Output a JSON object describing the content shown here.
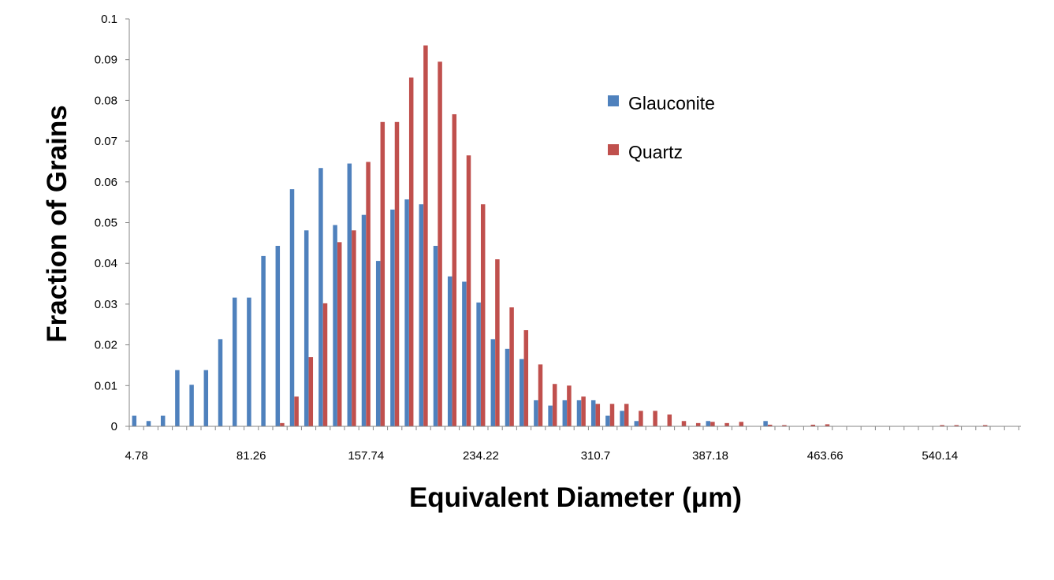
{
  "chart_data": {
    "type": "bar",
    "xlabel": "Equivalent Diameter (μm)",
    "ylabel": "Fraction of Grains",
    "ylim": [
      0,
      0.1
    ],
    "yticks": [
      "0",
      "0.01",
      "0.02",
      "0.03",
      "0.04",
      "0.05",
      "0.06",
      "0.07",
      "0.08",
      "0.09",
      "0.1"
    ],
    "xtick_labels": [
      "4.78",
      "81.26",
      "157.74",
      "234.22",
      "310.7",
      "387.18",
      "463.66",
      "540.14"
    ],
    "bin_width": 9.56,
    "x": [
      4.78,
      14.34,
      23.9,
      33.46,
      43.02,
      52.58,
      62.14,
      71.7,
      81.26,
      90.82,
      100.38,
      109.94,
      119.5,
      129.06,
      138.62,
      148.18,
      157.74,
      167.3,
      176.86,
      186.42,
      195.98,
      205.54,
      215.1,
      224.66,
      234.22,
      243.78,
      253.34,
      262.9,
      272.46,
      282.02,
      291.58,
      301.14,
      310.7,
      320.26,
      329.82,
      339.38,
      348.94,
      358.5,
      368.06,
      377.62,
      387.18,
      396.74,
      406.3,
      415.86,
      425.42,
      434.98,
      444.54,
      454.1,
      463.66,
      473.22,
      482.78,
      492.34,
      501.9,
      511.46,
      521.02,
      530.58,
      540.14,
      549.7,
      559.26,
      568.82,
      578.38,
      587.94
    ],
    "legend_position": "top-right",
    "series": [
      {
        "name": "Glauconite",
        "color": "#4F81BD",
        "values": [
          0.0026,
          0.0013,
          0.0026,
          0.0138,
          0.0102,
          0.0138,
          0.0214,
          0.0316,
          0.0316,
          0.0418,
          0.0443,
          0.0582,
          0.0481,
          0.0634,
          0.0494,
          0.0645,
          0.0519,
          0.0406,
          0.0532,
          0.0557,
          0.0545,
          0.0443,
          0.0368,
          0.0355,
          0.0304,
          0.0214,
          0.019,
          0.0165,
          0.0064,
          0.0051,
          0.0064,
          0.0064,
          0.0064,
          0.0026,
          0.0038,
          0.0013,
          0,
          0,
          0,
          0,
          0.0013,
          0,
          0,
          0,
          0.0013,
          0,
          0,
          0,
          0,
          0,
          0,
          0,
          0,
          0,
          0,
          0,
          0,
          0,
          0,
          0,
          0,
          0
        ]
      },
      {
        "name": "Quartz",
        "color": "#C0504D",
        "values": [
          0,
          0,
          0,
          0,
          0,
          0,
          0,
          0,
          0,
          0,
          0.0008,
          0.0073,
          0.017,
          0.0302,
          0.0452,
          0.0481,
          0.0649,
          0.0747,
          0.0747,
          0.0856,
          0.0935,
          0.0895,
          0.0766,
          0.0665,
          0.0545,
          0.041,
          0.0292,
          0.0236,
          0.0152,
          0.0104,
          0.01,
          0.0073,
          0.0055,
          0.0055,
          0.0055,
          0.0038,
          0.0038,
          0.0029,
          0.0013,
          0.0008,
          0.0011,
          0.0008,
          0.0011,
          0,
          0.0004,
          0.0003,
          0,
          0.0004,
          0.0005,
          0,
          0,
          0,
          0,
          0,
          0,
          0,
          0.0003,
          0.0003,
          0,
          0.0003,
          0,
          0
        ]
      }
    ]
  }
}
